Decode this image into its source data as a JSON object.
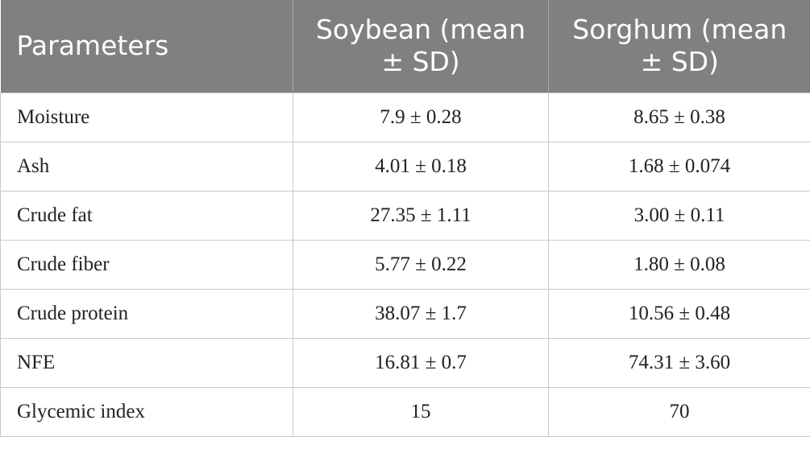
{
  "table": {
    "header": [
      "Parameters",
      "Soybean (mean ± SD)",
      "Sorghum (mean ± SD)"
    ],
    "rows": [
      [
        "Moisture",
        "7.9 ± 0.28",
        "8.65 ± 0.38"
      ],
      [
        "Ash",
        "4.01 ± 0.18",
        "1.68 ± 0.074"
      ],
      [
        "Crude fat",
        "27.35 ± 1.11",
        "3.00 ± 0.11"
      ],
      [
        "Crude fiber",
        "5.77 ± 0.22",
        "1.80 ± 0.08"
      ],
      [
        "Crude protein",
        "38.07 ± 1.7",
        "10.56 ± 0.48"
      ],
      [
        "NFE",
        "16.81 ± 0.7",
        "74.31 ± 3.60"
      ],
      [
        "Glycemic index",
        "15",
        "70"
      ]
    ]
  }
}
